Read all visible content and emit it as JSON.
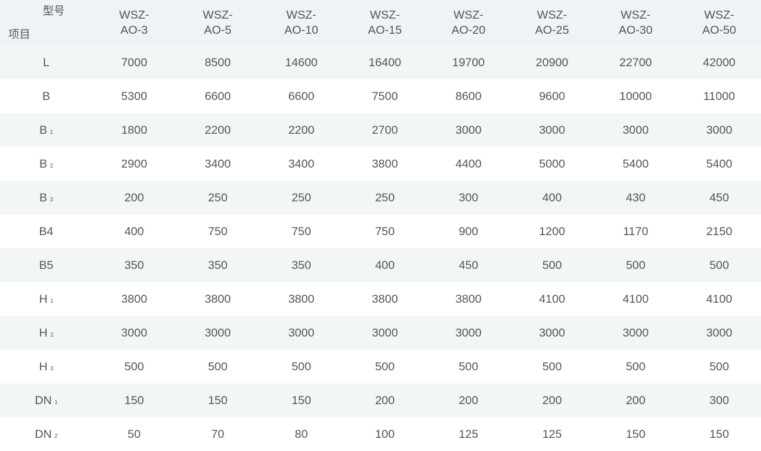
{
  "header": {
    "corner_top": "型号",
    "corner_bottom": "项目",
    "models": [
      [
        "WSZ-",
        "AO-3"
      ],
      [
        "WSZ-",
        "AO-5"
      ],
      [
        "WSZ-",
        "AO-10"
      ],
      [
        "WSZ-",
        "AO-15"
      ],
      [
        "WSZ-",
        "AO-20"
      ],
      [
        "WSZ-",
        "AO-25"
      ],
      [
        "WSZ-",
        "AO-30"
      ],
      [
        "WSZ-",
        "AO-50"
      ]
    ]
  },
  "rows": [
    {
      "label": "L",
      "sub": "",
      "values": [
        "7000",
        "8500",
        "14600",
        "16400",
        "19700",
        "20900",
        "22700",
        "42000"
      ]
    },
    {
      "label": "B",
      "sub": "",
      "values": [
        "5300",
        "6600",
        "6600",
        "7500",
        "8600",
        "9600",
        "10000",
        "11000"
      ]
    },
    {
      "label": "B",
      "sub": "1",
      "values": [
        "1800",
        "2200",
        "2200",
        "2700",
        "3000",
        "3000",
        "3000",
        "3000"
      ]
    },
    {
      "label": "B",
      "sub": "2",
      "values": [
        "2900",
        "3400",
        "3400",
        "3800",
        "4400",
        "5000",
        "5400",
        "5400"
      ]
    },
    {
      "label": "B",
      "sub": "3",
      "values": [
        "200",
        "250",
        "250",
        "250",
        "300",
        "400",
        "430",
        "450"
      ]
    },
    {
      "label": "B4",
      "sub": "",
      "values": [
        "400",
        "750",
        "750",
        "750",
        "900",
        "1200",
        "1170",
        "2150"
      ]
    },
    {
      "label": "B5",
      "sub": "",
      "values": [
        "350",
        "350",
        "350",
        "400",
        "450",
        "500",
        "500",
        "500"
      ]
    },
    {
      "label": "H",
      "sub": "1",
      "values": [
        "3800",
        "3800",
        "3800",
        "3800",
        "3800",
        "4100",
        "4100",
        "4100"
      ]
    },
    {
      "label": "H",
      "sub": "2",
      "values": [
        "3000",
        "3000",
        "3000",
        "3000",
        "3000",
        "3000",
        "3000",
        "3000"
      ]
    },
    {
      "label": "H",
      "sub": "3",
      "values": [
        "500",
        "500",
        "500",
        "500",
        "500",
        "500",
        "500",
        "500"
      ]
    },
    {
      "label": "DN",
      "sub": "1",
      "values": [
        "150",
        "150",
        "150",
        "200",
        "200",
        "200",
        "200",
        "300"
      ]
    },
    {
      "label": "DN",
      "sub": "2",
      "values": [
        "50",
        "70",
        "80",
        "100",
        "125",
        "125",
        "150",
        "150"
      ]
    }
  ],
  "colors": {
    "header_bg": "#eef3f5",
    "stripe_bg": "#f2f6f7",
    "text": "#555555"
  }
}
